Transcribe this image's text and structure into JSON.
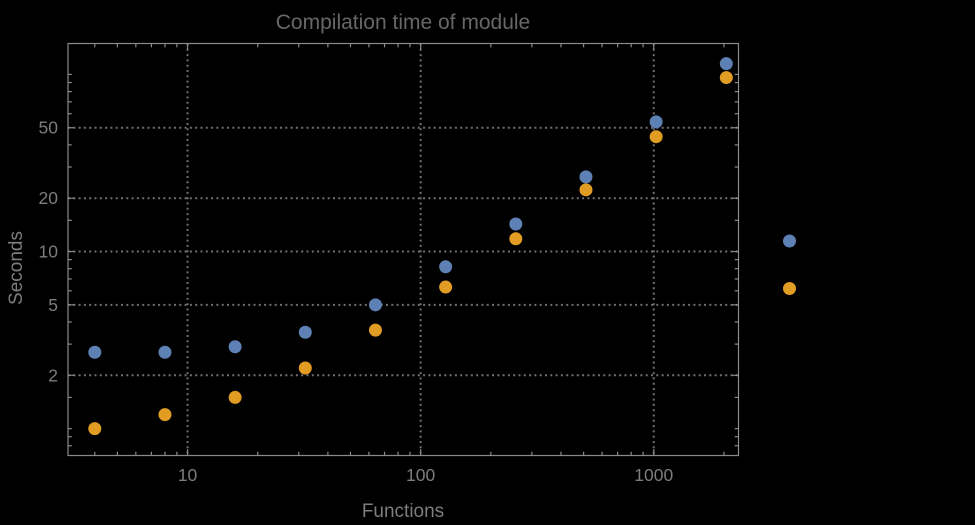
{
  "window": {
    "background": "#000000"
  },
  "chart_data": {
    "type": "scatter",
    "title": "Compilation time of module",
    "xlabel": "Functions",
    "ylabel": "Seconds",
    "x_scale": "log",
    "y_scale": "log",
    "xlim": [
      3.07,
      2310
    ],
    "ylim": [
      0.705,
      149.5
    ],
    "grid": true,
    "legend_position": "right-center",
    "x": [
      4,
      8,
      16,
      32,
      64,
      128,
      256,
      512,
      1024,
      2048
    ],
    "series": [
      {
        "name": "series-1-blue",
        "color": "#5e81b5",
        "values": [
          2.7,
          2.7,
          2.9,
          3.5,
          5.0,
          8.2,
          14.3,
          26.4,
          54,
          115
        ]
      },
      {
        "name": "series-2-orange",
        "color": "#e19c24",
        "values": [
          1.0,
          1.2,
          1.5,
          2.2,
          3.6,
          6.3,
          11.8,
          22.3,
          44.5,
          96
        ]
      }
    ],
    "x_ticks": {
      "major": [
        10,
        100,
        1000
      ],
      "major_labels": [
        "10",
        "100",
        "1000"
      ],
      "minor": [
        4,
        5,
        6,
        7,
        8,
        9,
        20,
        30,
        40,
        50,
        60,
        70,
        80,
        90,
        200,
        300,
        400,
        500,
        600,
        700,
        800,
        900,
        2000
      ]
    },
    "y_ticks": {
      "major": [
        2,
        5,
        10,
        20,
        50
      ],
      "major_labels": [
        "2",
        "5",
        "10",
        "20",
        "50"
      ],
      "minor": [
        0.8,
        0.9,
        1,
        1.5,
        3,
        4,
        6,
        7,
        8,
        9,
        15,
        30,
        40,
        60,
        70,
        80,
        90,
        100
      ]
    },
    "gridlines": {
      "x": [
        10,
        100,
        1000
      ],
      "y": [
        2,
        5,
        10,
        20,
        50
      ],
      "style": "dotted"
    },
    "legend": {
      "entries": [
        {
          "label": "",
          "marker_color": "#5e81b5"
        },
        {
          "label": "",
          "marker_color": "#e19c24"
        }
      ]
    },
    "colors": {
      "background": "#000000",
      "frame": "#8a8a8a",
      "gridline": "#707070",
      "tick_label": "#7d7d7d",
      "axis_label": "#7d7d7d",
      "title": "#676767",
      "series_blue": "#5e81b5",
      "series_orange": "#e19c24"
    }
  }
}
